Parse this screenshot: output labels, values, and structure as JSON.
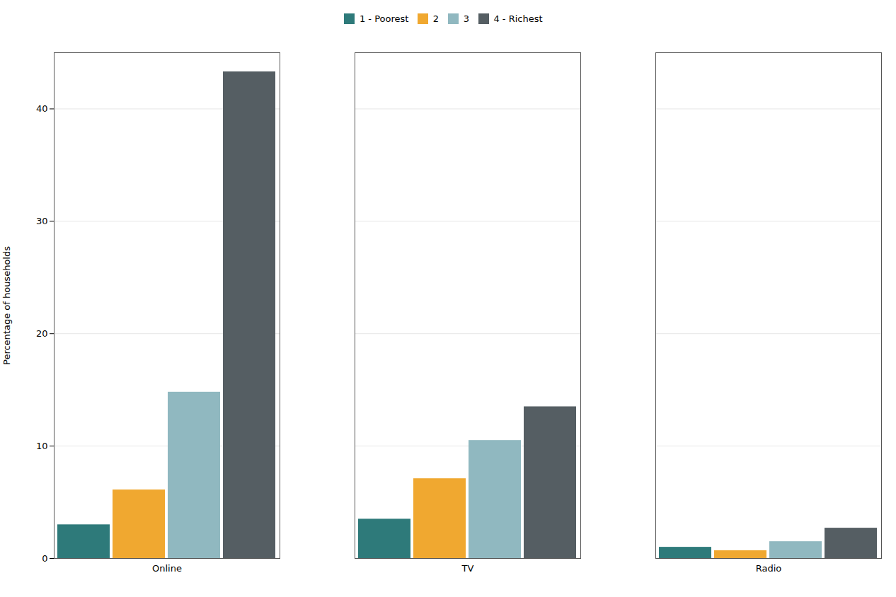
{
  "chart_data": {
    "type": "bar",
    "categories": [
      "Online",
      "TV",
      "Radio"
    ],
    "series": [
      {
        "name": "1 - Poorest",
        "color": "#2e7a7a",
        "values": [
          3.0,
          3.5,
          1.0
        ]
      },
      {
        "name": "2",
        "color": "#f0a830",
        "values": [
          6.1,
          7.1,
          0.7
        ]
      },
      {
        "name": "3",
        "color": "#90b8c0",
        "values": [
          14.8,
          10.5,
          1.5
        ]
      },
      {
        "name": "4 - Richest",
        "color": "#555e63",
        "values": [
          43.3,
          13.5,
          2.7
        ]
      }
    ],
    "ylabel": "Percentage of households",
    "ylim": [
      0,
      45
    ],
    "yticks": [
      0,
      10,
      20,
      30,
      40
    ],
    "grid": true,
    "legend": "top"
  }
}
